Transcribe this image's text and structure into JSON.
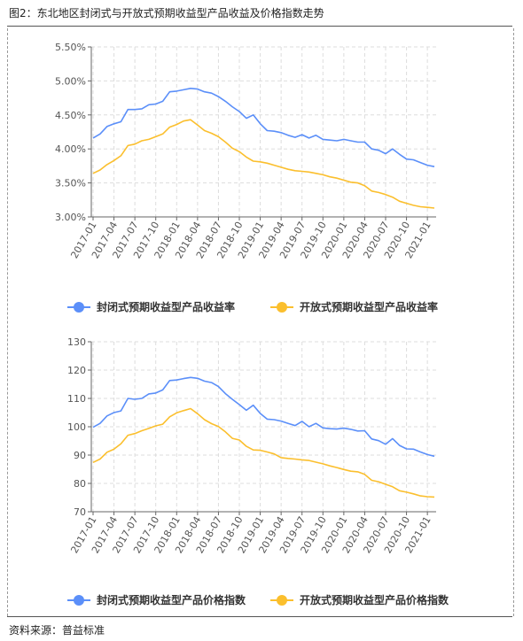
{
  "figure": {
    "title": "图2：东北地区封闭式与开放式预期收益型产品收益及价格指数走势",
    "source": "资料来源：普益标准"
  },
  "chart_data": [
    {
      "type": "line",
      "x_tick_labels": [
        "2017-01",
        "2017-04",
        "2017-07",
        "2017-10",
        "2018-01",
        "2018-04",
        "2018-07",
        "2018-10",
        "2019-01",
        "2019-04",
        "2019-07",
        "2019-10",
        "2020-01",
        "2020-04",
        "2020-07",
        "2020-10",
        "2021-01"
      ],
      "y_tick_labels": [
        "3.00%",
        "3.50%",
        "4.00%",
        "4.50%",
        "5.00%",
        "5.50%"
      ],
      "ylim": [
        3.0,
        5.5
      ],
      "grid": true,
      "legend_position": "bottom",
      "series": [
        {
          "name": "封闭式预期收益型产品收益率",
          "color": "#5b8ff9",
          "values": [
            4.16,
            4.22,
            4.33,
            4.37,
            4.4,
            4.58,
            4.58,
            4.59,
            4.65,
            4.66,
            4.7,
            4.84,
            4.85,
            4.87,
            4.89,
            4.88,
            4.84,
            4.82,
            4.77,
            4.7,
            4.62,
            4.55,
            4.45,
            4.5,
            4.37,
            4.27,
            4.26,
            4.24,
            4.2,
            4.17,
            4.21,
            4.16,
            4.2,
            4.14,
            4.13,
            4.12,
            4.14,
            4.12,
            4.1,
            4.1,
            4.0,
            3.98,
            3.93,
            4.0,
            3.92,
            3.85,
            3.84,
            3.8,
            3.76,
            3.74
          ]
        },
        {
          "name": "开放式预期收益型产品收益率",
          "color": "#fbbf2d",
          "values": [
            3.64,
            3.69,
            3.77,
            3.83,
            3.9,
            4.05,
            4.07,
            4.12,
            4.14,
            4.18,
            4.22,
            4.32,
            4.36,
            4.41,
            4.43,
            4.35,
            4.27,
            4.23,
            4.18,
            4.1,
            4.01,
            3.96,
            3.88,
            3.82,
            3.81,
            3.79,
            3.76,
            3.73,
            3.7,
            3.68,
            3.67,
            3.66,
            3.64,
            3.62,
            3.59,
            3.57,
            3.54,
            3.51,
            3.5,
            3.46,
            3.38,
            3.36,
            3.33,
            3.29,
            3.23,
            3.2,
            3.17,
            3.15,
            3.14,
            3.13
          ]
        }
      ]
    },
    {
      "type": "line",
      "x_tick_labels": [
        "2017-01",
        "2017-04",
        "2017-07",
        "2017-10",
        "2018-01",
        "2018-04",
        "2018-07",
        "2018-10",
        "2019-01",
        "2019-04",
        "2019-07",
        "2019-10",
        "2020-01",
        "2020-04",
        "2020-07",
        "2020-10",
        "2021-01"
      ],
      "y_tick_labels": [
        "70",
        "80",
        "90",
        "100",
        "110",
        "120",
        "130"
      ],
      "ylim": [
        70,
        130
      ],
      "grid": true,
      "legend_position": "bottom",
      "series": [
        {
          "name": "封闭式预期收益型产品价格指数",
          "color": "#5b8ff9",
          "values": [
            99.8,
            101.2,
            103.8,
            105.0,
            105.6,
            110.0,
            109.7,
            110.0,
            111.6,
            111.9,
            113.0,
            116.3,
            116.5,
            117.0,
            117.4,
            117.1,
            116.1,
            115.6,
            114.2,
            111.7,
            109.7,
            107.8,
            105.8,
            107.6,
            104.7,
            102.7,
            102.5,
            102.0,
            101.2,
            100.4,
            101.9,
            100.0,
            101.2,
            99.6,
            99.3,
            99.2,
            99.5,
            99.1,
            98.5,
            98.6,
            95.7,
            95.1,
            93.8,
            95.8,
            93.4,
            92.2,
            92.1,
            91.1,
            90.2,
            89.6
          ]
        },
        {
          "name": "开放式预期收益型产品价格指数",
          "color": "#fbbf2d",
          "values": [
            87.4,
            88.6,
            91.0,
            92.1,
            94.0,
            97.0,
            97.6,
            98.6,
            99.4,
            100.3,
            100.9,
            103.5,
            104.9,
            105.7,
            106.4,
            104.6,
            102.5,
            101.1,
            100.1,
            98.2,
            95.9,
            95.3,
            93.1,
            91.8,
            91.7,
            91.1,
            90.4,
            89.1,
            88.8,
            88.6,
            88.3,
            88.1,
            87.5,
            86.9,
            86.2,
            85.6,
            84.9,
            84.3,
            84.1,
            83.2,
            81.1,
            80.6,
            79.7,
            78.8,
            77.4,
            76.9,
            76.3,
            75.6,
            75.3,
            75.2
          ]
        }
      ]
    }
  ]
}
